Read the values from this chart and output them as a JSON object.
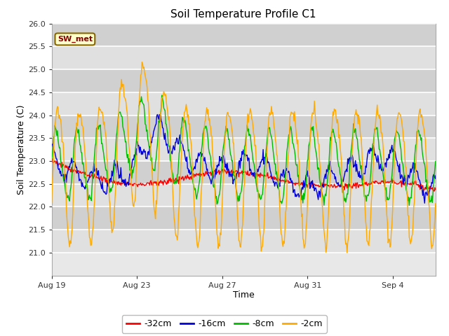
{
  "title": "Soil Temperature Profile C1",
  "xlabel": "Time",
  "ylabel": "Soil Temperature (C)",
  "ylim": [
    20.5,
    26.0
  ],
  "yticks": [
    21.0,
    21.5,
    22.0,
    22.5,
    23.0,
    23.5,
    24.0,
    24.5,
    25.0,
    25.5,
    26.0
  ],
  "bg_color": "#ffffff",
  "plot_bg_color": "#e8e8e8",
  "legend_labels": [
    "-32cm",
    "-16cm",
    "-8cm",
    "-2cm"
  ],
  "legend_colors": [
    "#ff0000",
    "#0000dd",
    "#00bb00",
    "#ffaa00"
  ],
  "line_colors": {
    "m32": "#ff0000",
    "m16": "#0000dd",
    "m8": "#00bb00",
    "m2": "#ffaa00"
  },
  "annotation_text": "SW_met",
  "annotation_color": "#880000",
  "annotation_bg": "#ffffcc",
  "annotation_border": "#886600",
  "tick_dates": [
    "Aug 19",
    "Aug 23",
    "Aug 27",
    "Aug 31",
    "Sep 4"
  ],
  "tick_offsets": [
    0,
    4,
    8,
    12,
    16
  ],
  "xlim": [
    0,
    18
  ],
  "band_colors": [
    "#e0e0e0",
    "#d0d0d0"
  ]
}
